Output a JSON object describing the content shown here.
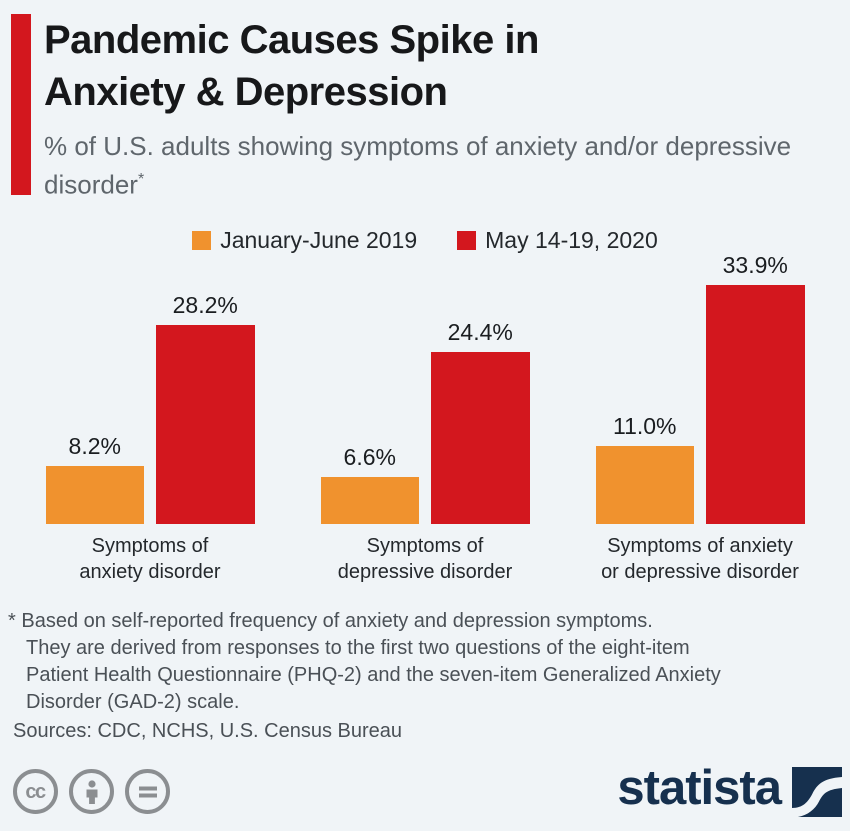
{
  "page": {
    "background_color": "#f0f4f7"
  },
  "header": {
    "title_line1": "Pandemic Causes Spike in",
    "title_line2": "Anxiety & Depression",
    "subtitle": "% of U.S. adults showing symptoms of anxiety and/or depressive disorder",
    "footnote_marker": "*",
    "accent_color": "#d3171e",
    "accent_icon": "red-vertical-bar"
  },
  "legend": {
    "position": "top-center",
    "items": [
      {
        "label": "January-June 2019",
        "color": "#f0922e",
        "icon": "orange-square-swatch"
      },
      {
        "label": "May 14-19, 2020",
        "color": "#d3171e",
        "icon": "red-square-swatch"
      }
    ]
  },
  "chart_data": {
    "type": "bar",
    "title": "Pandemic Causes Spike in Anxiety & Depression",
    "subtitle": "% of U.S. adults showing symptoms of anxiety and/or depressive disorder*",
    "categories": [
      [
        "Symptoms of",
        "anxiety disorder"
      ],
      [
        "Symptoms of",
        "depressive disorder"
      ],
      [
        "Symptoms of anxiety",
        "or depressive disorder"
      ]
    ],
    "series": [
      {
        "name": "January-June 2019",
        "color": "#f0922e",
        "values": [
          8.2,
          6.6,
          11.0
        ],
        "labels": [
          "8.2%",
          "6.6%",
          "11.0%"
        ]
      },
      {
        "name": "May 14-19, 2020",
        "color": "#d3171e",
        "values": [
          28.2,
          24.4,
          33.9
        ],
        "labels": [
          "28.2%",
          "24.4%",
          "33.9%"
        ]
      }
    ],
    "ylabel": "% of U.S. adults",
    "ylim": [
      0,
      36
    ],
    "grid": false,
    "axis_lines": false,
    "value_labels": true,
    "legend_position": "top"
  },
  "footnote": {
    "marker": "*",
    "lines": [
      "Based on self-reported frequency of anxiety and depression symptoms.",
      "They are derived from responses to the first two questions of the eight-item",
      "Patient Health Questionnaire (PHQ-2) and the seven-item Generalized Anxiety",
      "Disorder (GAD-2) scale."
    ],
    "sources": "Sources: CDC, NCHS, U.S. Census Bureau"
  },
  "footer": {
    "license_icons": [
      "cc-icon",
      "attribution-person-icon",
      "equals-icon"
    ],
    "cc_glyph": "cc",
    "brand": "statista",
    "brand_color": "#16304e",
    "icon_color": "#8b8e91"
  }
}
